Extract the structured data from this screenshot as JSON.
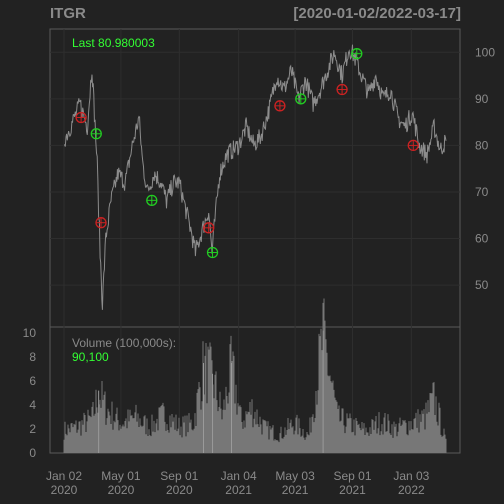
{
  "title_left": "ITGR",
  "title_right": "[2020-01-02/2022-03-17]",
  "last_label": "Last 80.980003",
  "volume_label": "Volume (100,000s):",
  "volume_value": "90,100",
  "colors": {
    "background": "#222222",
    "price_line": "#8c8c8c",
    "volume_bar": "#777777",
    "buy_marker": "#22cc22",
    "sell_marker": "#cc2222",
    "label_green": "#33ff33",
    "text_gray": "#8a8a8a",
    "frame": "#5a5a5a"
  },
  "chart_data": {
    "type": "line",
    "title": "ITGR",
    "date_range": "[2020-01-02/2022-03-17]",
    "x_start": "2020-01-02",
    "x_end": "2022-03-17",
    "x_tick_labels": [
      [
        "Jan 02",
        "2020"
      ],
      [
        "May 01",
        "2020"
      ],
      [
        "Sep 01",
        "2020"
      ],
      [
        "Jan 04",
        "2021"
      ],
      [
        "May 03",
        "2021"
      ],
      [
        "Sep 01",
        "2021"
      ],
      [
        "Jan 03",
        "2022"
      ]
    ],
    "x_ticks": [
      "2020-01-02",
      "2020-05-01",
      "2020-09-01",
      "2021-01-04",
      "2021-05-03",
      "2021-09-01",
      "2022-01-03"
    ],
    "price_ylim": [
      41,
      105
    ],
    "price_yticks": [
      50,
      60,
      70,
      80,
      90,
      100
    ],
    "volume_ylim": [
      0,
      10.5
    ],
    "volume_yticks": [
      0,
      2,
      4,
      6,
      8,
      10
    ],
    "price_series": [
      [
        "2020-01-02",
        81
      ],
      [
        "2020-01-20",
        85
      ],
      [
        "2020-02-05",
        89
      ],
      [
        "2020-02-20",
        84
      ],
      [
        "2020-03-01",
        97
      ],
      [
        "2020-03-06",
        87
      ],
      [
        "2020-03-12",
        76
      ],
      [
        "2020-03-18",
        57
      ],
      [
        "2020-03-23",
        46
      ],
      [
        "2020-03-30",
        60
      ],
      [
        "2020-04-10",
        68
      ],
      [
        "2020-04-25",
        74
      ],
      [
        "2020-05-10",
        72
      ],
      [
        "2020-05-25",
        80
      ],
      [
        "2020-06-08",
        86
      ],
      [
        "2020-06-16",
        76
      ],
      [
        "2020-06-26",
        70
      ],
      [
        "2020-07-10",
        74
      ],
      [
        "2020-07-25",
        72
      ],
      [
        "2020-08-05",
        68
      ],
      [
        "2020-08-20",
        72
      ],
      [
        "2020-09-01",
        72
      ],
      [
        "2020-09-15",
        66
      ],
      [
        "2020-09-25",
        62
      ],
      [
        "2020-10-05",
        57
      ],
      [
        "2020-10-20",
        62
      ],
      [
        "2020-11-02",
        66
      ],
      [
        "2020-11-09",
        57
      ],
      [
        "2020-11-15",
        64
      ],
      [
        "2020-11-25",
        74
      ],
      [
        "2020-12-10",
        78
      ],
      [
        "2021-01-04",
        80
      ],
      [
        "2021-01-20",
        84
      ],
      [
        "2021-02-05",
        80
      ],
      [
        "2021-02-20",
        82
      ],
      [
        "2021-03-10",
        88
      ],
      [
        "2021-03-25",
        95
      ],
      [
        "2021-04-10",
        92
      ],
      [
        "2021-04-25",
        96
      ],
      [
        "2021-05-10",
        90
      ],
      [
        "2021-05-25",
        94
      ],
      [
        "2021-06-10",
        89
      ],
      [
        "2021-06-25",
        92
      ],
      [
        "2021-07-10",
        96
      ],
      [
        "2021-07-25",
        100
      ],
      [
        "2021-08-10",
        95
      ],
      [
        "2021-08-25",
        101
      ],
      [
        "2021-09-05",
        99
      ],
      [
        "2021-09-20",
        95
      ],
      [
        "2021-10-05",
        91
      ],
      [
        "2021-10-20",
        95
      ],
      [
        "2021-11-05",
        90
      ],
      [
        "2021-11-20",
        92
      ],
      [
        "2021-12-05",
        86
      ],
      [
        "2021-12-20",
        84
      ],
      [
        "2022-01-05",
        87
      ],
      [
        "2022-01-20",
        80
      ],
      [
        "2022-02-05",
        78
      ],
      [
        "2022-02-20",
        84
      ],
      [
        "2022-03-05",
        79
      ],
      [
        "2022-03-17",
        81
      ]
    ],
    "volume_series_note": "daily volume bars, mostly 1-3 (100,000s) with spikes",
    "volume_series": [
      [
        "2020-01-02",
        2.0
      ],
      [
        "2020-02-01",
        2.3
      ],
      [
        "2020-03-01",
        3.0
      ],
      [
        "2020-03-15",
        5.2
      ],
      [
        "2020-04-01",
        3.8
      ],
      [
        "2020-05-01",
        2.6
      ],
      [
        "2020-06-01",
        3.1
      ],
      [
        "2020-07-01",
        2.2
      ],
      [
        "2020-08-01",
        3.4
      ],
      [
        "2020-09-01",
        2.3
      ],
      [
        "2020-10-01",
        2.6
      ],
      [
        "2020-10-22",
        7.5
      ],
      [
        "2020-11-10",
        6.6
      ],
      [
        "2020-12-01",
        3.2
      ],
      [
        "2020-12-20",
        7.5
      ],
      [
        "2021-01-10",
        2.7
      ],
      [
        "2021-02-01",
        3.9
      ],
      [
        "2021-03-01",
        2.1
      ],
      [
        "2021-04-01",
        1.6
      ],
      [
        "2021-05-01",
        2.6
      ],
      [
        "2021-06-01",
        1.5
      ],
      [
        "2021-07-01",
        10.2
      ],
      [
        "2021-08-01",
        3.0
      ],
      [
        "2021-09-01",
        2.4
      ],
      [
        "2021-10-01",
        1.9
      ],
      [
        "2021-11-01",
        2.8
      ],
      [
        "2021-12-01",
        2.1
      ],
      [
        "2022-01-01",
        2.6
      ],
      [
        "2022-02-01",
        3.1
      ],
      [
        "2022-02-20",
        4.8
      ],
      [
        "2022-03-17",
        0.9
      ]
    ],
    "buy_signals": [
      [
        "2020-03-10",
        82.5
      ],
      [
        "2020-07-05",
        68.2
      ],
      [
        "2020-11-10",
        57.0
      ],
      [
        "2021-05-15",
        90.0
      ],
      [
        "2021-09-10",
        99.7
      ]
    ],
    "sell_signals": [
      [
        "2020-02-07",
        86.0
      ],
      [
        "2020-03-20",
        63.4
      ],
      [
        "2020-11-02",
        62.3
      ],
      [
        "2021-04-01",
        88.5
      ],
      [
        "2021-08-10",
        92.0
      ],
      [
        "2022-01-07",
        80.0
      ]
    ]
  }
}
